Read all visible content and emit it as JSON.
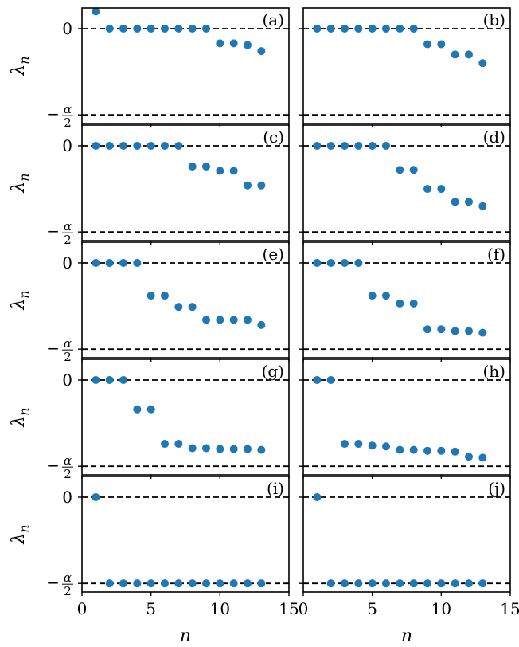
{
  "figure": {
    "xlabel": "n",
    "ylabel": "λ",
    "ylabel_sub": "n",
    "ytick_zero": "0",
    "ytick_half": "−α/2",
    "xtick_labels": [
      "0",
      "5",
      "10",
      "15"
    ],
    "marker_color": "#1f77b4"
  },
  "chart_data": [
    {
      "panel": "(a)",
      "type": "scatter",
      "xlim": [
        0,
        15
      ],
      "ylim": [
        -0.55,
        0.12
      ],
      "x": [
        1,
        2,
        3,
        4,
        5,
        6,
        7,
        8,
        9,
        10,
        11,
        12,
        13
      ],
      "y": [
        0.1,
        0,
        0,
        0,
        0,
        0,
        0,
        0,
        0,
        -0.085,
        -0.085,
        -0.095,
        -0.13
      ]
    },
    {
      "panel": "(b)",
      "type": "scatter",
      "xlim": [
        0,
        15
      ],
      "ylim": [
        -0.55,
        0.12
      ],
      "x": [
        1,
        2,
        3,
        4,
        5,
        6,
        7,
        8,
        9,
        10,
        11,
        12,
        13
      ],
      "y": [
        0,
        0,
        0,
        0,
        0,
        0,
        0,
        0,
        -0.09,
        -0.09,
        -0.15,
        -0.15,
        -0.2
      ]
    },
    {
      "panel": "(c)",
      "type": "scatter",
      "xlim": [
        0,
        15
      ],
      "ylim": [
        -0.55,
        0.12
      ],
      "x": [
        1,
        2,
        3,
        4,
        5,
        6,
        7,
        8,
        9,
        10,
        11,
        12,
        13
      ],
      "y": [
        0,
        0,
        0,
        0,
        0,
        0,
        0,
        -0.12,
        -0.12,
        -0.145,
        -0.145,
        -0.23,
        -0.23
      ]
    },
    {
      "panel": "(d)",
      "type": "scatter",
      "xlim": [
        0,
        15
      ],
      "ylim": [
        -0.55,
        0.12
      ],
      "x": [
        1,
        2,
        3,
        4,
        5,
        6,
        7,
        8,
        9,
        10,
        11,
        12,
        13
      ],
      "y": [
        0,
        0,
        0,
        0,
        0,
        0,
        -0.14,
        -0.14,
        -0.25,
        -0.25,
        -0.325,
        -0.325,
        -0.35
      ]
    },
    {
      "panel": "(e)",
      "type": "scatter",
      "xlim": [
        0,
        15
      ],
      "ylim": [
        -0.55,
        0.12
      ],
      "x": [
        1,
        2,
        3,
        4,
        5,
        6,
        7,
        8,
        9,
        10,
        11,
        12,
        13
      ],
      "y": [
        0,
        0,
        0,
        0,
        -0.19,
        -0.19,
        -0.255,
        -0.255,
        -0.33,
        -0.33,
        -0.33,
        -0.33,
        -0.36
      ]
    },
    {
      "panel": "(f)",
      "type": "scatter",
      "xlim": [
        0,
        15
      ],
      "ylim": [
        -0.55,
        0.12
      ],
      "x": [
        1,
        2,
        3,
        4,
        5,
        6,
        7,
        8,
        9,
        10,
        11,
        12,
        13
      ],
      "y": [
        0,
        0,
        0,
        0,
        -0.19,
        -0.19,
        -0.235,
        -0.235,
        -0.385,
        -0.385,
        -0.395,
        -0.395,
        -0.405
      ]
    },
    {
      "panel": "(g)",
      "type": "scatter",
      "xlim": [
        0,
        15
      ],
      "ylim": [
        -0.55,
        0.12
      ],
      "x": [
        1,
        2,
        3,
        4,
        5,
        6,
        7,
        8,
        9,
        10,
        11,
        12,
        13
      ],
      "y": [
        0,
        0,
        0,
        -0.17,
        -0.17,
        -0.37,
        -0.37,
        -0.395,
        -0.395,
        -0.4,
        -0.4,
        -0.4,
        -0.405
      ]
    },
    {
      "panel": "(h)",
      "type": "scatter",
      "xlim": [
        0,
        15
      ],
      "ylim": [
        -0.55,
        0.12
      ],
      "x": [
        1,
        2,
        3,
        4,
        5,
        6,
        7,
        8,
        9,
        10,
        11,
        12,
        13
      ],
      "y": [
        0,
        0,
        -0.37,
        -0.37,
        -0.38,
        -0.385,
        -0.405,
        -0.405,
        -0.41,
        -0.41,
        -0.415,
        -0.445,
        -0.45
      ]
    },
    {
      "panel": "(i)",
      "type": "scatter",
      "xlim": [
        0,
        15
      ],
      "ylim": [
        -0.55,
        0.12
      ],
      "x": [
        1,
        2,
        3,
        4,
        5,
        6,
        7,
        8,
        9,
        10,
        11,
        12,
        13
      ],
      "y": [
        0,
        -0.5,
        -0.5,
        -0.5,
        -0.5,
        -0.5,
        -0.5,
        -0.5,
        -0.5,
        -0.5,
        -0.5,
        -0.5,
        -0.5
      ]
    },
    {
      "panel": "(j)",
      "type": "scatter",
      "xlim": [
        0,
        15
      ],
      "ylim": [
        -0.55,
        0.12
      ],
      "x": [
        1,
        2,
        3,
        4,
        5,
        6,
        7,
        8,
        9,
        10,
        11,
        12,
        13
      ],
      "y": [
        0,
        -0.5,
        -0.5,
        -0.5,
        -0.5,
        -0.5,
        -0.5,
        -0.5,
        -0.5,
        -0.5,
        -0.5,
        -0.5,
        -0.5
      ]
    }
  ]
}
